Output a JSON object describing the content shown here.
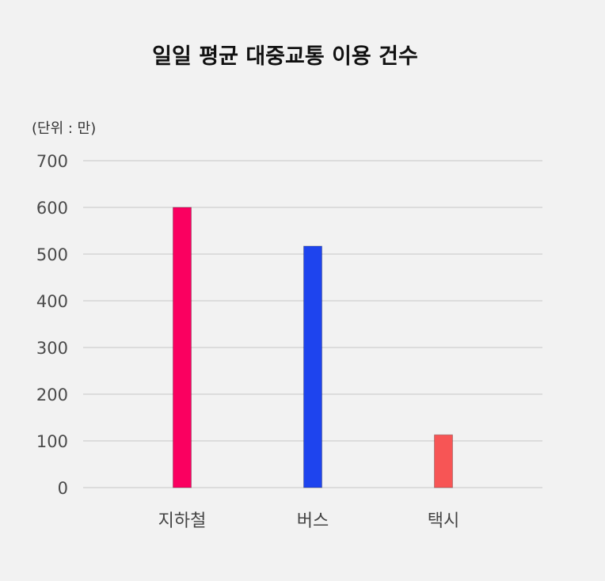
{
  "chart_data": {
    "type": "bar",
    "title": "일일 평균 대중교통 이용 건수",
    "unit_label": "(단위 : 만)",
    "categories": [
      "지하철",
      "버스",
      "택시"
    ],
    "values": [
      600,
      517,
      113
    ],
    "colors": [
      "#fa0060",
      "#1e44ee",
      "#f75555"
    ],
    "ylim": [
      0,
      700
    ],
    "yticks": [
      0,
      100,
      200,
      300,
      400,
      500,
      600,
      700
    ],
    "grid": true,
    "legend": "none"
  }
}
